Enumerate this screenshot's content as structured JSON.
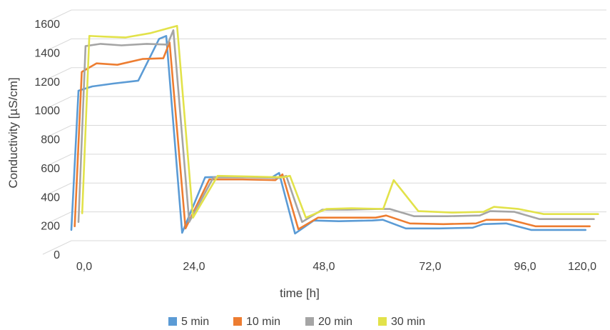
{
  "chart_data": {
    "type": "line",
    "title": "",
    "xlabel": "time [h]",
    "ylabel": "Conductivity [µS/cm]",
    "xlim": [
      0,
      128
    ],
    "ylim": [
      0,
      1600
    ],
    "x_ticks": [
      0,
      24,
      48,
      72,
      96,
      120
    ],
    "x_tick_labels": [
      "0,0",
      "24,0",
      "48,0",
      "72,0",
      "96,0",
      "120,0"
    ],
    "y_ticks": [
      0,
      200,
      400,
      600,
      800,
      1000,
      1200,
      1400,
      1600
    ],
    "y_tick_labels": [
      "0",
      "200",
      "400",
      "600",
      "800",
      "1000",
      "1200",
      "1400",
      "1600"
    ],
    "grid": "horizontal",
    "legend_position": "bottom",
    "series": [
      {
        "name": "5 min",
        "color": "#5b9bd5",
        "x": [
          0,
          1.7,
          5,
          10,
          16,
          21,
          22.7,
          26.5,
          32,
          40,
          48,
          49.7,
          53.5,
          58,
          64,
          72,
          74.5,
          80,
          88,
          96,
          98.5,
          104,
          110,
          115,
          120,
          123
        ],
        "y": [
          75,
          1040,
          1070,
          1090,
          1110,
          1400,
          1420,
          55,
          440,
          445,
          440,
          470,
          50,
          140,
          135,
          140,
          145,
          85,
          85,
          90,
          115,
          120,
          75,
          75,
          75,
          75
        ]
      },
      {
        "name": "10 min",
        "color": "#ed7d31",
        "x": [
          0.8,
          2.5,
          6,
          11,
          17,
          22,
          23.5,
          27.3,
          33,
          41,
          48.8,
          50.5,
          54.3,
          59,
          65,
          72.8,
          75.3,
          81,
          89,
          96.8,
          99.3,
          105,
          111,
          116,
          121,
          124
        ],
        "y": [
          100,
          1170,
          1230,
          1220,
          1260,
          1265,
          1375,
          85,
          425,
          425,
          420,
          460,
          80,
          160,
          160,
          160,
          175,
          120,
          115,
          120,
          145,
          145,
          100,
          100,
          100,
          100
        ]
      },
      {
        "name": "20 min",
        "color": "#a5a5a5",
        "x": [
          1.7,
          3.4,
          7,
          12,
          18,
          23,
          24.4,
          28.2,
          34,
          42,
          49.7,
          51.4,
          55.2,
          60,
          66,
          73.7,
          76.2,
          82,
          90,
          97.7,
          100.2,
          106,
          112,
          117,
          122,
          125
        ],
        "y": [
          130,
          1350,
          1365,
          1355,
          1365,
          1360,
          1460,
          130,
          440,
          440,
          435,
          450,
          130,
          215,
          215,
          220,
          220,
          170,
          170,
          175,
          205,
          200,
          150,
          150,
          150,
          150
        ]
      },
      {
        "name": "30 min",
        "color": "#e2e24a",
        "x": [
          2.6,
          4.3,
          8,
          13,
          19,
          24,
          25.3,
          29.1,
          35,
          43,
          50.6,
          52.3,
          56.1,
          61,
          67,
          74.6,
          77.1,
          83,
          91,
          98.6,
          101.1,
          107,
          113,
          118,
          123,
          126
        ],
        "y": [
          190,
          1420,
          1415,
          1410,
          1440,
          1480,
          1490,
          160,
          450,
          445,
          440,
          450,
          160,
          220,
          225,
          220,
          420,
          205,
          195,
          200,
          235,
          220,
          185,
          185,
          185,
          185
        ]
      }
    ]
  }
}
